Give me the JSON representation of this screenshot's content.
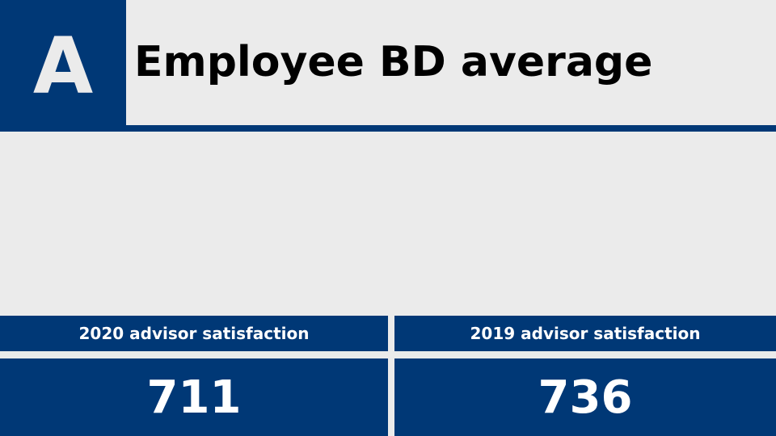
{
  "header": {
    "grade": "A",
    "title": "Employee BD average"
  },
  "stats": [
    {
      "label": "2020 advisor satisfaction",
      "value": "711"
    },
    {
      "label": "2019 advisor satisfaction",
      "value": "736"
    }
  ],
  "colors": {
    "accent": "#003876",
    "background": "#ebebeb",
    "title_text": "#000000",
    "stat_text": "#ffffff"
  }
}
